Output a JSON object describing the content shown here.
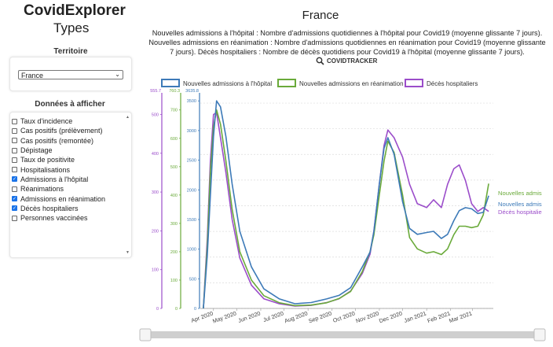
{
  "app": {
    "title": "CovidExplorer",
    "subtitle": "Types"
  },
  "territory": {
    "label": "Territoire",
    "selected": "France"
  },
  "data_panel": {
    "label": "Données à afficher",
    "options": [
      {
        "label": "Taux d'incidence",
        "checked": false
      },
      {
        "label": "Cas positifs (prélèvement)",
        "checked": false
      },
      {
        "label": "Cas positifs (remontée)",
        "checked": false
      },
      {
        "label": "Dépistage",
        "checked": false
      },
      {
        "label": "Taux de positivite",
        "checked": false
      },
      {
        "label": "Hospitalisations",
        "checked": false
      },
      {
        "label": "Admissions à l'hôpital",
        "checked": true
      },
      {
        "label": "Réanimations",
        "checked": false
      },
      {
        "label": "Admissions en réanimation",
        "checked": true
      },
      {
        "label": "Décès hospitaliers",
        "checked": true
      },
      {
        "label": "Personnes vaccinées",
        "checked": false
      }
    ]
  },
  "chart": {
    "title": "France",
    "description": "Nouvelles admissions à l'hôpital : Nombre d'admissions quotidiennes à l'hôpital pour Covid19 (moyenne glissante 7 jours). Nouvelles admissions en réanimation : Nombre d'admissions quotidiennes en réanimation pour Covid19 (moyenne glissante 7 jours). Décès hospitaliers : Nombre de décès quotidiens pour Covid19 à l'hôpital (moyenne glissante 7 jours).",
    "credit_brand": "COVIDTRACKER",
    "credit_icon": "search-icon"
  },
  "chart_data": {
    "type": "line",
    "legend_position": "top",
    "grid": true,
    "x_ticks": [
      "Apr 2020",
      "May 2020",
      "Jun 2020",
      "Jul 2020",
      "Aug 2020",
      "Sep 2020",
      "Oct 2020",
      "Nov 2020",
      "Dec 2020",
      "Jan 2021",
      "Feb 2021",
      "Mar 2021"
    ],
    "x": [
      "2020-03-19",
      "2020-03-24",
      "2020-03-28",
      "2020-04-01",
      "2020-04-05",
      "2020-04-10",
      "2020-04-17",
      "2020-04-25",
      "2020-05-05",
      "2020-05-20",
      "2020-06-05",
      "2020-06-25",
      "2020-07-15",
      "2020-08-05",
      "2020-08-25",
      "2020-09-10",
      "2020-09-25",
      "2020-10-10",
      "2020-10-20",
      "2020-10-25",
      "2020-11-01",
      "2020-11-07",
      "2020-11-12",
      "2020-11-20",
      "2020-12-01",
      "2020-12-10",
      "2020-12-20",
      "2021-01-01",
      "2021-01-10",
      "2021-01-20",
      "2021-01-28",
      "2021-02-05",
      "2021-02-12",
      "2021-02-20",
      "2021-02-28",
      "2021-03-08",
      "2021-03-15",
      "2021-03-22"
    ],
    "axes": [
      {
        "color": "#9b4dca",
        "max": 555.7,
        "max_label": "555.7",
        "ticks": [
          0,
          100,
          200,
          300,
          400,
          500
        ]
      },
      {
        "color": "#6aaa3a",
        "max": 760.3,
        "max_label": "760.3",
        "ticks": [
          0,
          100,
          200,
          300,
          400,
          500,
          600,
          700
        ]
      },
      {
        "color": "#3d7ab8",
        "max": 3635.8,
        "max_label": "3635.8",
        "ticks": [
          0,
          500,
          1000,
          1500,
          2000,
          2500,
          3000,
          3500
        ]
      }
    ],
    "series": [
      {
        "name": "Nouvelles admissions à l'hôpital",
        "color": "#3d7ab8",
        "axis": 2,
        "end_label": "Nouvelles admis",
        "values": [
          0,
          900,
          1900,
          2900,
          3500,
          3400,
          2900,
          2100,
          1300,
          700,
          330,
          160,
          80,
          100,
          160,
          220,
          350,
          700,
          950,
          1300,
          2100,
          2700,
          2880,
          2600,
          1800,
          1350,
          1250,
          1280,
          1300,
          1180,
          1250,
          1480,
          1650,
          1700,
          1680,
          1600,
          1620,
          1900
        ]
      },
      {
        "name": "Nouvelles admissions en réanimation",
        "color": "#6aaa3a",
        "axis": 1,
        "end_label": "Nouvelles admis",
        "values": [
          0,
          220,
          480,
          640,
          700,
          650,
          520,
          350,
          200,
          100,
          45,
          20,
          10,
          12,
          20,
          35,
          60,
          130,
          200,
          260,
          400,
          520,
          590,
          550,
          400,
          250,
          210,
          195,
          200,
          190,
          210,
          260,
          290,
          290,
          285,
          290,
          330,
          440
        ]
      },
      {
        "name": "Décès hospitaliers",
        "color": "#9b4dca",
        "axis": 0,
        "end_label": "Décès hospitalie",
        "values": [
          0,
          180,
          380,
          500,
          505,
          440,
          350,
          230,
          130,
          60,
          25,
          12,
          6,
          8,
          15,
          25,
          45,
          90,
          140,
          200,
          320,
          420,
          460,
          440,
          390,
          320,
          270,
          260,
          280,
          260,
          320,
          360,
          370,
          330,
          270,
          250,
          260,
          250
        ]
      }
    ]
  }
}
